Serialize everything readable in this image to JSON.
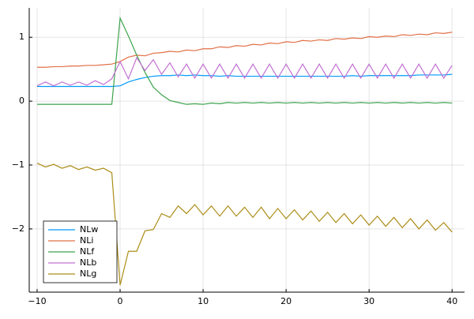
{
  "chart_data": {
    "type": "line",
    "x": [
      -10,
      -9,
      -8,
      -7,
      -6,
      -5,
      -4,
      -3,
      -2,
      -1,
      0,
      1,
      2,
      3,
      4,
      5,
      6,
      7,
      8,
      9,
      10,
      11,
      12,
      13,
      14,
      15,
      16,
      17,
      18,
      19,
      20,
      21,
      22,
      23,
      24,
      25,
      26,
      27,
      28,
      29,
      30,
      31,
      32,
      33,
      34,
      35,
      36,
      37,
      38,
      39,
      40
    ],
    "series": [
      {
        "name": "NLw",
        "color": "#009af9",
        "values": [
          0.23,
          0.23,
          0.23,
          0.23,
          0.23,
          0.23,
          0.23,
          0.23,
          0.23,
          0.23,
          0.24,
          0.3,
          0.34,
          0.37,
          0.39,
          0.4,
          0.4,
          0.41,
          0.4,
          0.41,
          0.4,
          0.4,
          0.39,
          0.4,
          0.39,
          0.39,
          0.39,
          0.39,
          0.39,
          0.39,
          0.39,
          0.39,
          0.39,
          0.39,
          0.39,
          0.39,
          0.39,
          0.39,
          0.4,
          0.39,
          0.4,
          0.4,
          0.4,
          0.4,
          0.4,
          0.4,
          0.41,
          0.41,
          0.41,
          0.41,
          0.42
        ]
      },
      {
        "name": "NLi",
        "color": "#e26f46",
        "values": [
          0.53,
          0.53,
          0.54,
          0.54,
          0.55,
          0.55,
          0.56,
          0.56,
          0.57,
          0.58,
          0.62,
          0.69,
          0.72,
          0.71,
          0.75,
          0.76,
          0.78,
          0.77,
          0.8,
          0.79,
          0.82,
          0.82,
          0.85,
          0.84,
          0.87,
          0.86,
          0.89,
          0.88,
          0.91,
          0.9,
          0.93,
          0.92,
          0.95,
          0.94,
          0.96,
          0.95,
          0.98,
          0.97,
          0.99,
          0.98,
          1.01,
          1.0,
          1.02,
          1.01,
          1.04,
          1.03,
          1.05,
          1.04,
          1.07,
          1.06,
          1.08
        ]
      },
      {
        "name": "NLf",
        "color": "#3da44d",
        "values": [
          -0.05,
          -0.05,
          -0.05,
          -0.05,
          -0.05,
          -0.05,
          -0.05,
          -0.05,
          -0.05,
          -0.05,
          1.3,
          1.02,
          0.72,
          0.45,
          0.22,
          0.1,
          0.01,
          -0.02,
          -0.05,
          -0.04,
          -0.05,
          -0.03,
          -0.04,
          -0.02,
          -0.03,
          -0.02,
          -0.03,
          -0.02,
          -0.03,
          -0.02,
          -0.03,
          -0.02,
          -0.03,
          -0.02,
          -0.03,
          -0.02,
          -0.03,
          -0.02,
          -0.03,
          -0.02,
          -0.03,
          -0.02,
          -0.03,
          -0.02,
          -0.03,
          -0.02,
          -0.03,
          -0.02,
          -0.03,
          -0.02,
          -0.03
        ]
      },
      {
        "name": "NLb",
        "color": "#c271d2",
        "values": [
          0.24,
          0.3,
          0.24,
          0.3,
          0.25,
          0.3,
          0.25,
          0.32,
          0.26,
          0.35,
          0.62,
          0.35,
          0.68,
          0.48,
          0.65,
          0.42,
          0.6,
          0.38,
          0.58,
          0.36,
          0.58,
          0.36,
          0.58,
          0.36,
          0.58,
          0.36,
          0.58,
          0.36,
          0.58,
          0.36,
          0.58,
          0.36,
          0.58,
          0.36,
          0.58,
          0.36,
          0.58,
          0.36,
          0.58,
          0.36,
          0.58,
          0.36,
          0.58,
          0.36,
          0.58,
          0.36,
          0.58,
          0.36,
          0.58,
          0.36,
          0.56
        ]
      },
      {
        "name": "NLg",
        "color": "#ac8d18",
        "values": [
          -0.97,
          -1.03,
          -0.99,
          -1.05,
          -1.01,
          -1.07,
          -1.03,
          -1.08,
          -1.05,
          -1.12,
          -2.88,
          -2.35,
          -2.35,
          -2.03,
          -2.01,
          -1.76,
          -1.82,
          -1.64,
          -1.76,
          -1.62,
          -1.78,
          -1.64,
          -1.8,
          -1.64,
          -1.8,
          -1.66,
          -1.82,
          -1.66,
          -1.84,
          -1.68,
          -1.84,
          -1.7,
          -1.86,
          -1.72,
          -1.88,
          -1.74,
          -1.9,
          -1.76,
          -1.92,
          -1.78,
          -1.94,
          -1.8,
          -1.96,
          -1.82,
          -1.98,
          -1.84,
          -2.0,
          -1.86,
          -2.02,
          -1.9,
          -2.05
        ]
      }
    ],
    "xlim": [
      -10.95,
      41.5
    ],
    "ylim": [
      -2.99,
      1.46
    ],
    "xticks": [
      {
        "value": -10,
        "label": "−10"
      },
      0,
      10,
      20,
      30,
      40
    ],
    "yticks": [
      {
        "value": -2,
        "label": "−2"
      },
      {
        "value": -1,
        "label": "−1"
      },
      0,
      1
    ],
    "grid": true,
    "legend": "bottom-left"
  }
}
